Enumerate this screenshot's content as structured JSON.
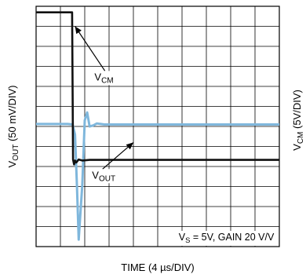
{
  "chart_data": {
    "type": "line",
    "title": "",
    "xlabel": "TIME (4 µs/DIV)",
    "ylabel_left": {
      "base": "V",
      "sub": "OUT",
      "rest": " (50 mV/DIV)"
    },
    "ylabel_right": {
      "base": "V",
      "sub": "CM",
      "rest": " (5V/DIV)"
    },
    "divisions": {
      "x": 10,
      "y": 12
    },
    "grid": true,
    "condition": {
      "base": "V",
      "sub": "S",
      "rest": " = 5V, GAIN 20 V/V"
    },
    "series": [
      {
        "label": {
          "base": "V",
          "sub": "CM"
        },
        "color": "#111111",
        "x_div": [
          0,
          1.4,
          1.48,
          1.52,
          1.56,
          1.6,
          1.65,
          1.75,
          1.9,
          2.2,
          10
        ],
        "y_div": [
          11.7,
          11.7,
          11.7,
          4.35,
          4.1,
          4.3,
          4.2,
          4.35,
          4.3,
          4.33,
          4.33
        ]
      },
      {
        "label": {
          "base": "V",
          "sub": "OUT"
        },
        "color": "#7fb7dc",
        "x_div": [
          0,
          1.3,
          1.5,
          1.6,
          1.68,
          1.75,
          1.9,
          2.0,
          2.1,
          2.2,
          2.35,
          2.5,
          2.8,
          10
        ],
        "y_div": [
          6.12,
          6.12,
          6.1,
          5.6,
          3.0,
          0.35,
          3.1,
          6.3,
          6.7,
          6.0,
          6.05,
          6.15,
          6.1,
          6.1
        ]
      }
    ],
    "annotations": [
      {
        "text_ref": "VCM",
        "label_x_div": 2.4,
        "label_y_div": 8.3,
        "arrow_to_x_div": 1.6,
        "arrow_to_y_div": 11.0
      },
      {
        "text_ref": "VOUT",
        "label_x_div": 2.3,
        "label_y_div": 3.4,
        "arrow_to_x_div": 4.0,
        "arrow_to_y_div": 5.2
      }
    ]
  }
}
